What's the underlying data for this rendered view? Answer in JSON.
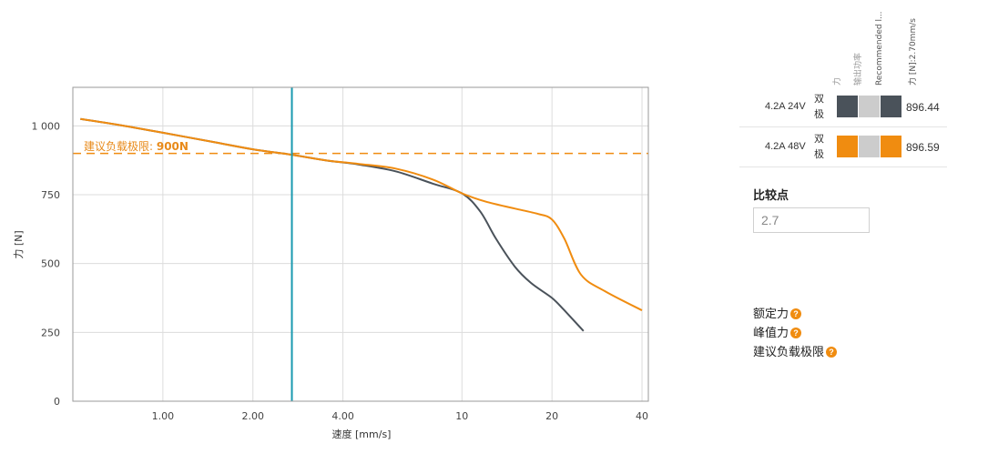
{
  "chart_data": {
    "type": "line",
    "title": "",
    "xlabel": "速度 [mm/s]",
    "ylabel": "力 [N]",
    "x_scale": "log",
    "xlim": [
      0.5,
      42
    ],
    "ylim": [
      0,
      1140
    ],
    "x_ticks": [
      {
        "value": 1.0,
        "label": "1.00"
      },
      {
        "value": 2.0,
        "label": "2.00"
      },
      {
        "value": 4.0,
        "label": "4.00"
      },
      {
        "value": 10,
        "label": "10"
      },
      {
        "value": 20,
        "label": "20"
      },
      {
        "value": 40,
        "label": "40"
      }
    ],
    "y_ticks": [
      {
        "value": 0,
        "label": "0"
      },
      {
        "value": 250,
        "label": "250"
      },
      {
        "value": 500,
        "label": "500"
      },
      {
        "value": 750,
        "label": "750"
      },
      {
        "value": 1000,
        "label": "1 000"
      }
    ],
    "grid": true,
    "limit_line": {
      "value": 900,
      "label_prefix": "建议负载极限: ",
      "label_value": "900N",
      "color": "#f08c10"
    },
    "compare_line": {
      "x": 2.7,
      "color": "#1a9ab0"
    },
    "series": [
      {
        "color": "#4a525a",
        "x": [
          0.53,
          0.7,
          1.0,
          1.5,
          2.0,
          2.7,
          3.5,
          4.5,
          6.0,
          8.0,
          10.0,
          11.5,
          13.0,
          15.0,
          17.0,
          20.0,
          22.0,
          25.5
        ],
        "y": [
          1025,
          1005,
          975,
          940,
          915,
          895,
          875,
          860,
          835,
          790,
          755,
          690,
          590,
          490,
          430,
          375,
          330,
          255
        ]
      },
      {
        "color": "#f08c10",
        "x": [
          0.53,
          0.7,
          1.0,
          1.5,
          2.0,
          2.7,
          3.5,
          4.5,
          6.0,
          8.0,
          10.0,
          12.0,
          15.0,
          18.0,
          20.0,
          22.0,
          25.0,
          30.0,
          40.0
        ],
        "y": [
          1025,
          1005,
          975,
          940,
          915,
          895,
          875,
          862,
          845,
          805,
          755,
          725,
          700,
          680,
          660,
          590,
          460,
          400,
          330
        ]
      }
    ]
  },
  "legend": {
    "column_headers": [
      "力",
      "输出功率",
      "Recommended l...",
      "力 [N]:2.70mm/s"
    ],
    "rows": [
      {
        "config": "4.2A  24V",
        "polarity": "双极",
        "swatch_colors": [
          "#4a525a",
          "#cccccc",
          "#4a525a"
        ],
        "value": "896.44"
      },
      {
        "config": "4.2A  48V",
        "polarity": "双极",
        "swatch_colors": [
          "#f08c10",
          "#cccccc",
          "#f08c10"
        ],
        "value": "896.59"
      }
    ]
  },
  "compare": {
    "title": "比较点",
    "value": "2.7"
  },
  "info_items": [
    {
      "label": "额定力",
      "icon": "question-icon",
      "icon_glyph": "?"
    },
    {
      "label": "峰值力",
      "icon": "question-icon",
      "icon_glyph": "?"
    },
    {
      "label": "建议负载极限",
      "icon": "question-icon",
      "icon_glyph": "?"
    }
  ]
}
